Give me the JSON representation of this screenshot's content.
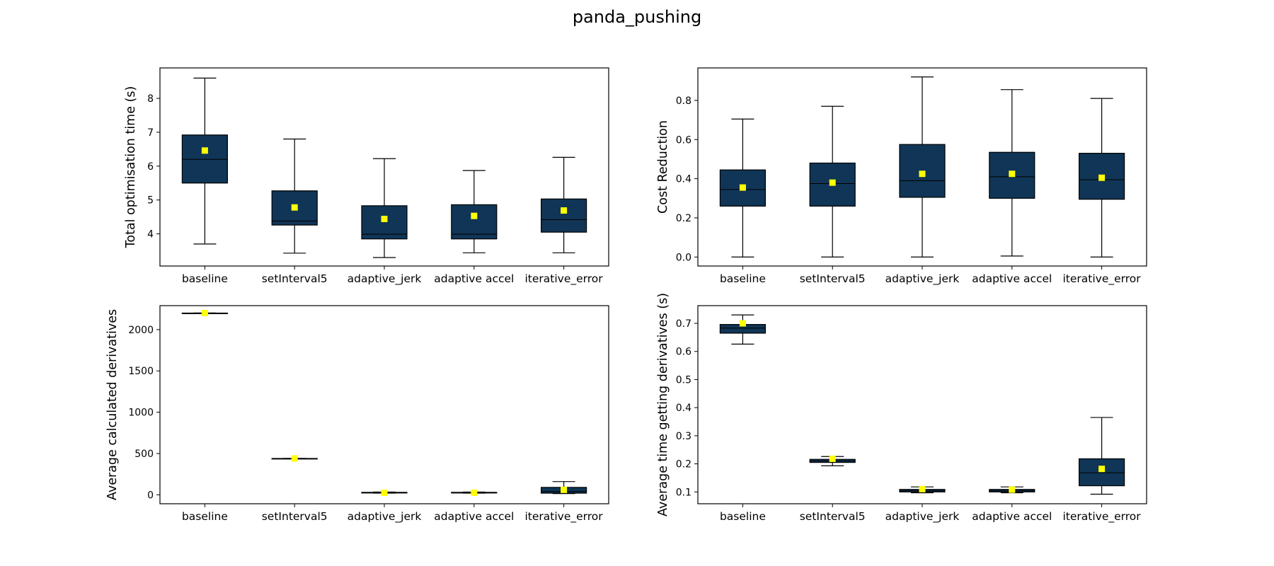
{
  "figure": {
    "title": "panda_pushing"
  },
  "colors": {
    "box_fill": "#103556",
    "mean_marker": "#ffff00",
    "line": "#000000"
  },
  "chart_data": [
    {
      "type": "box",
      "title": "",
      "xlabel": "",
      "ylabel": "Total optimisation time (s)",
      "categories": [
        "baseline",
        "setInterval5",
        "adaptive_jerk",
        "adaptive accel",
        "iterative_error"
      ],
      "ylim": [
        3.05,
        8.9
      ],
      "yticks": [
        4,
        5,
        6,
        7,
        8
      ],
      "ytick_labels": [
        "4",
        "5",
        "6",
        "7",
        "8"
      ],
      "boxes": [
        {
          "whislo": 3.7,
          "q1": 5.5,
          "med": 6.2,
          "q3": 6.92,
          "whishi": 8.6,
          "mean": 6.46
        },
        {
          "whislo": 3.43,
          "q1": 4.26,
          "med": 4.38,
          "q3": 5.27,
          "whishi": 6.8,
          "mean": 4.78
        },
        {
          "whislo": 3.3,
          "q1": 3.85,
          "med": 3.99,
          "q3": 4.83,
          "whishi": 6.22,
          "mean": 4.44
        },
        {
          "whislo": 3.44,
          "q1": 3.85,
          "med": 3.99,
          "q3": 4.86,
          "whishi": 5.87,
          "mean": 4.53
        },
        {
          "whislo": 3.44,
          "q1": 4.05,
          "med": 4.42,
          "q3": 5.03,
          "whishi": 6.26,
          "mean": 4.69
        }
      ]
    },
    {
      "type": "box",
      "title": "",
      "xlabel": "",
      "ylabel": "Cost Reduction",
      "categories": [
        "baseline",
        "setInterval5",
        "adaptive_jerk",
        "adaptive accel",
        "iterative_error"
      ],
      "ylim": [
        -0.046,
        0.966
      ],
      "yticks": [
        0.0,
        0.2,
        0.4,
        0.6,
        0.8
      ],
      "ytick_labels": [
        "0.0",
        "0.2",
        "0.4",
        "0.6",
        "0.8"
      ],
      "boxes": [
        {
          "whislo": 0.0,
          "q1": 0.26,
          "med": 0.345,
          "q3": 0.445,
          "whishi": 0.705,
          "mean": 0.355
        },
        {
          "whislo": 0.0,
          "q1": 0.26,
          "med": 0.375,
          "q3": 0.48,
          "whishi": 0.77,
          "mean": 0.38
        },
        {
          "whislo": 0.0,
          "q1": 0.305,
          "med": 0.39,
          "q3": 0.575,
          "whishi": 0.92,
          "mean": 0.425
        },
        {
          "whislo": 0.005,
          "q1": 0.3,
          "med": 0.41,
          "q3": 0.535,
          "whishi": 0.855,
          "mean": 0.425
        },
        {
          "whislo": 0.0,
          "q1": 0.295,
          "med": 0.395,
          "q3": 0.53,
          "whishi": 0.81,
          "mean": 0.405
        }
      ]
    },
    {
      "type": "box",
      "title": "",
      "xlabel": "",
      "ylabel": "Average calculated derivatives",
      "categories": [
        "baseline",
        "setInterval5",
        "adaptive_jerk",
        "adaptive accel",
        "iterative_error"
      ],
      "ylim": [
        -108,
        2290
      ],
      "yticks": [
        0,
        500,
        1000,
        1500,
        2000
      ],
      "ytick_labels": [
        "0",
        "500",
        "1000",
        "1500",
        "2000"
      ],
      "boxes": [
        {
          "whislo": 2200,
          "q1": 2200,
          "med": 2200,
          "q3": 2200,
          "whishi": 2200,
          "mean": 2200
        },
        {
          "whislo": 440,
          "q1": 440,
          "med": 440,
          "q3": 440,
          "whishi": 440,
          "mean": 440
        },
        {
          "whislo": 20,
          "q1": 22,
          "med": 25,
          "q3": 30,
          "whishi": 33,
          "mean": 25
        },
        {
          "whislo": 20,
          "q1": 22,
          "med": 25,
          "q3": 30,
          "whishi": 33,
          "mean": 25
        },
        {
          "whislo": 15,
          "q1": 20,
          "med": 40,
          "q3": 90,
          "whishi": 160,
          "mean": 60
        }
      ]
    },
    {
      "type": "box",
      "title": "",
      "xlabel": "",
      "ylabel": "Average time getting derivatives (s)",
      "categories": [
        "baseline",
        "setInterval5",
        "adaptive_jerk",
        "adaptive accel",
        "iterative_error"
      ],
      "ylim": [
        0.058,
        0.763
      ],
      "yticks": [
        0.1,
        0.2,
        0.3,
        0.4,
        0.5,
        0.6,
        0.7
      ],
      "ytick_labels": [
        "0.1",
        "0.2",
        "0.3",
        "0.4",
        "0.5",
        "0.6",
        "0.7"
      ],
      "boxes": [
        {
          "whislo": 0.626,
          "q1": 0.665,
          "med": 0.683,
          "q3": 0.696,
          "whishi": 0.73,
          "mean": 0.7
        },
        {
          "whislo": 0.193,
          "q1": 0.205,
          "med": 0.21,
          "q3": 0.216,
          "whishi": 0.226,
          "mean": 0.218
        },
        {
          "whislo": 0.097,
          "q1": 0.1,
          "med": 0.104,
          "q3": 0.109,
          "whishi": 0.118,
          "mean": 0.11
        },
        {
          "whislo": 0.097,
          "q1": 0.1,
          "med": 0.104,
          "q3": 0.109,
          "whishi": 0.118,
          "mean": 0.108
        },
        {
          "whislo": 0.092,
          "q1": 0.122,
          "med": 0.168,
          "q3": 0.218,
          "whishi": 0.365,
          "mean": 0.182
        }
      ]
    }
  ]
}
